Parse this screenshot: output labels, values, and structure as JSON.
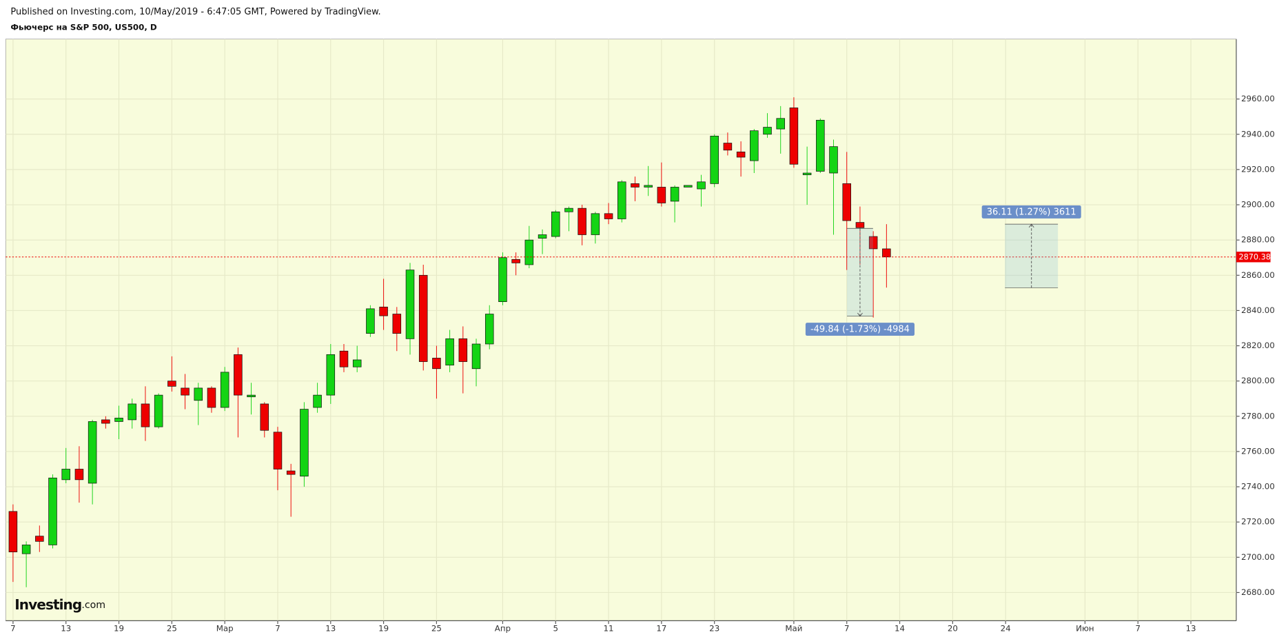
{
  "header": {
    "published": "Published on Investing.com, 10/May/2019 - 6:47:05 GMT, Powered by TradingView.",
    "instrument": "Фьючерс на S&P 500, US500, D"
  },
  "logo": {
    "brand": "Investing",
    "suffix": ".com"
  },
  "chart_data": {
    "type": "candlestick",
    "categories": [
      "7",
      null,
      null,
      null,
      "13",
      null,
      null,
      null,
      "19",
      null,
      null,
      null,
      "25",
      null,
      null,
      null,
      "Мар",
      null,
      null,
      null,
      "7",
      null,
      null,
      null,
      "13",
      null,
      null,
      null,
      "19",
      null,
      null,
      null,
      "25",
      null,
      null,
      null,
      null,
      "Апр",
      null,
      null,
      null,
      "5",
      null,
      null,
      null,
      "11",
      null,
      null,
      null,
      "17",
      null,
      null,
      null,
      "23",
      null,
      null,
      null,
      null,
      null,
      "Май",
      null,
      null,
      null,
      "7",
      null,
      null,
      null,
      "14",
      null,
      null,
      null,
      "20",
      null,
      null,
      null,
      "24",
      null,
      null,
      null,
      null,
      null,
      "Июн",
      null,
      null,
      null,
      "7",
      null,
      null,
      null,
      "13",
      null,
      null
    ],
    "open": [
      2726,
      2702,
      2712,
      2707,
      2744,
      2750,
      2742,
      2778,
      2777,
      2778,
      2787,
      2774,
      2800,
      2796,
      2789,
      2796,
      2785,
      2815,
      2791,
      2787,
      2771,
      2749,
      2746,
      2785,
      2792,
      2817,
      2808,
      2827,
      2842,
      2838,
      2824,
      2860,
      2813,
      2809,
      2824,
      2807,
      2821,
      2845,
      2869,
      2866,
      2881,
      2882,
      2896,
      2898,
      2883,
      2895,
      2892,
      2912,
      2910,
      2910,
      2902,
      2910,
      2909,
      2912,
      2935,
      2930,
      2925,
      2940,
      2943,
      2955,
      2917,
      2919,
      2918,
      2912,
      2890,
      2882,
      2875,
      null,
      null,
      null,
      null,
      null,
      null,
      null,
      null,
      null,
      null,
      null,
      null,
      null,
      null,
      null,
      null,
      null,
      null,
      null,
      null,
      null,
      null,
      null,
      null,
      null
    ],
    "high": [
      2730,
      2709,
      2718,
      2747,
      2762,
      2763,
      2778,
      2780,
      2786,
      2790,
      2797,
      2793,
      2814,
      2804,
      2799,
      2797,
      2808,
      2819,
      2799,
      2788,
      2774,
      2753,
      2788,
      2799,
      2821,
      2821,
      2820,
      2843,
      2858,
      2842,
      2867,
      2866,
      2820,
      2829,
      2831,
      2824,
      2843,
      2873,
      2873,
      2888,
      2886,
      2897,
      2899,
      2900,
      2896,
      2901,
      2914,
      2916,
      2922,
      2924,
      2911,
      2911,
      2917,
      2940,
      2941,
      2936,
      2943,
      2952,
      2956,
      2961,
      2933,
      2949,
      2937,
      2930,
      2899,
      2885,
      2889,
      null,
      null,
      null,
      null,
      null,
      null,
      null,
      null,
      null,
      null,
      null,
      null,
      null,
      null,
      null,
      null,
      null,
      null,
      null,
      null,
      null,
      null,
      null,
      null,
      null
    ],
    "low": [
      2686,
      2683,
      2703,
      2705,
      2742,
      2731,
      2730,
      2773,
      2767,
      2773,
      2766,
      2773,
      2794,
      2784,
      2775,
      2782,
      2783,
      2768,
      2781,
      2768,
      2738,
      2723,
      2740,
      2782,
      2787,
      2805,
      2805,
      2825,
      2829,
      2817,
      2815,
      2806,
      2790,
      2805,
      2793,
      2797,
      2818,
      2843,
      2860,
      2864,
      2872,
      2881,
      2885,
      2877,
      2878,
      2889,
      2890,
      2902,
      2905,
      2899,
      2890,
      2910,
      2899,
      2910,
      2928,
      2916,
      2918,
      2938,
      2929,
      2921,
      2900,
      2918,
      2883,
      2863,
      2866,
      2836,
      2853,
      null,
      null,
      null,
      null,
      null,
      null,
      null,
      null,
      null,
      null,
      null,
      null,
      null,
      null,
      null,
      null,
      null,
      null,
      null,
      null,
      null,
      null,
      null,
      null,
      null
    ],
    "close": [
      2703,
      2707,
      2709,
      2745,
      2750,
      2744,
      2777,
      2776,
      2779,
      2787,
      2774,
      2792,
      2797,
      2792,
      2796,
      2785,
      2805,
      2792,
      2792,
      2772,
      2750,
      2747,
      2784,
      2792,
      2815,
      2808,
      2812,
      2841,
      2837,
      2827,
      2863,
      2811,
      2807,
      2824,
      2811,
      2821,
      2838,
      2870,
      2867,
      2880,
      2883,
      2896,
      2898,
      2883,
      2895,
      2892,
      2913,
      2910,
      2911,
      2901,
      2910,
      2911,
      2913,
      2939,
      2931,
      2927,
      2942,
      2944,
      2949,
      2923,
      2918,
      2948,
      2933,
      2891,
      2887,
      2875,
      2870.38,
      null,
      null,
      null,
      null,
      null,
      null,
      null,
      null,
      null,
      null,
      null,
      null,
      null,
      null,
      null,
      null,
      null,
      null,
      null,
      null,
      null,
      null,
      null,
      null,
      null
    ],
    "up_color": "#14d414",
    "down_color": "#ee0000",
    "price_line_color": "#ee0000",
    "ylim": [
      2664,
      2994
    ],
    "yticks": [
      {
        "value": 2680,
        "label": "2680.00"
      },
      {
        "value": 2700,
        "label": "2700.00"
      },
      {
        "value": 2720,
        "label": "2720.00"
      },
      {
        "value": 2740,
        "label": "2740.00"
      },
      {
        "value": 2760,
        "label": "2760.00"
      },
      {
        "value": 2780,
        "label": "2780.00"
      },
      {
        "value": 2800,
        "label": "2800.00"
      },
      {
        "value": 2820,
        "label": "2820.00"
      },
      {
        "value": 2840,
        "label": "2840.00"
      },
      {
        "value": 2860,
        "label": "2860.00"
      },
      {
        "value": 2880,
        "label": "2880.00"
      },
      {
        "value": 2900,
        "label": "2900.00"
      },
      {
        "value": 2920,
        "label": "2920.00"
      },
      {
        "value": 2940,
        "label": "2940.00"
      },
      {
        "value": 2960,
        "label": "2960.00"
      }
    ],
    "grid": true,
    "measurements": [
      {
        "label": "-49.84 (-1.73%) -4984",
        "from": 2886.6,
        "to": 2836.76
      },
      {
        "label": "36.11 (1.27%) 3611",
        "from": 2852.9,
        "to": 2889.01
      }
    ]
  }
}
